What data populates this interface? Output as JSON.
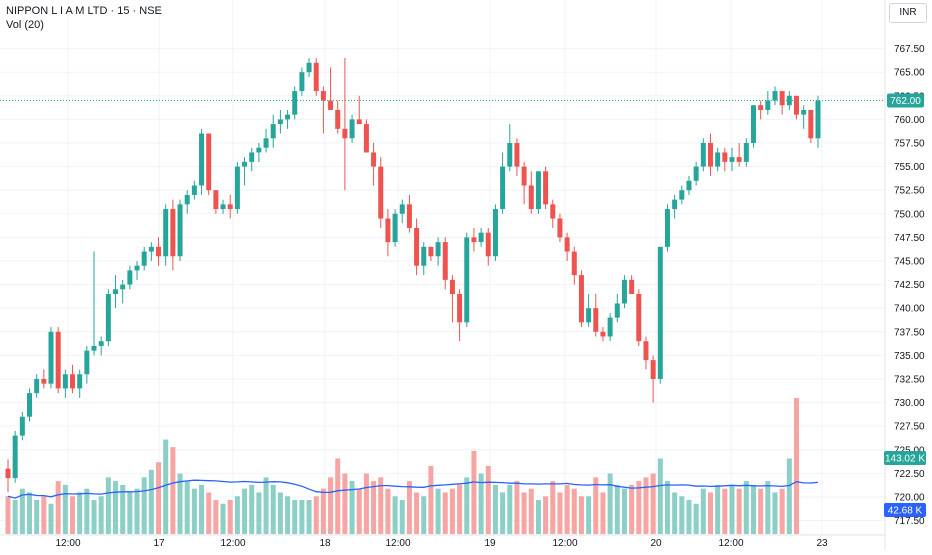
{
  "header": {
    "symbol_title": "NIPPON L I A M LTD · 15 · NSE",
    "volume_label": "Vol (20)",
    "currency": "INR"
  },
  "price_axis": {
    "ticks": [
      "767.50",
      "765.00",
      "762.50",
      "760.00",
      "757.50",
      "755.00",
      "752.50",
      "750.00",
      "747.50",
      "745.00",
      "742.50",
      "740.00",
      "737.50",
      "735.00",
      "732.50",
      "730.00",
      "727.50",
      "725.00",
      "722.50",
      "720.00",
      "717.50"
    ]
  },
  "time_axis": {
    "ticks": [
      "12:00",
      "17",
      "12:00",
      "18",
      "12:00",
      "19",
      "12:00",
      "20",
      "12:00",
      "23"
    ]
  },
  "last_price": {
    "label": "762.00",
    "value": 762.0,
    "color": "#26a69a"
  },
  "volume_badge": {
    "label": "143.02 K",
    "color": "#26a69a"
  },
  "vol_ma_badge": {
    "label": "42.68 K",
    "color": "#2962ff"
  },
  "colors": {
    "up": "#26a69a",
    "down": "#ef5350",
    "up_vol": "#8ccfc6",
    "down_vol": "#f6a5a3",
    "ma": "#2962ff",
    "grid": "#f0f3fa"
  },
  "chart_data": {
    "type": "candlestick",
    "title": "NIPPON L I A M LTD · 15 · NSE",
    "y_range": [
      716.5,
      770
    ],
    "series": [
      {
        "name": "price",
        "ohlc": [
          [
            723,
            724,
            720.5,
            722
          ],
          [
            722,
            727,
            721.5,
            726.5
          ],
          [
            726.5,
            729,
            726,
            728.5
          ],
          [
            728.5,
            731.5,
            728,
            731
          ],
          [
            731,
            733,
            730.5,
            732.5
          ],
          [
            732.5,
            733.5,
            731.5,
            732
          ],
          [
            732,
            738,
            731.5,
            737.5
          ],
          [
            737.5,
            738,
            731,
            731.5
          ],
          [
            731.5,
            733.5,
            730.5,
            733
          ],
          [
            733,
            734,
            731,
            731.5
          ],
          [
            731.5,
            733.5,
            730.5,
            733
          ],
          [
            733,
            736,
            732,
            735.5
          ],
          [
            735.5,
            746,
            735,
            736
          ],
          [
            736,
            737,
            735,
            736.5
          ],
          [
            736.5,
            742,
            736,
            741.5
          ],
          [
            741.5,
            743.5,
            740,
            742
          ],
          [
            742,
            743,
            740.5,
            742.5
          ],
          [
            742.5,
            744.5,
            742,
            744
          ],
          [
            744,
            745,
            743,
            744.5
          ],
          [
            744.5,
            746.5,
            744,
            746
          ],
          [
            746,
            747,
            745,
            746.5
          ],
          [
            746.5,
            747.5,
            744.5,
            745.5
          ],
          [
            745.5,
            751,
            744.5,
            750.5
          ],
          [
            750.5,
            751.5,
            744,
            745.5
          ],
          [
            745.5,
            751.5,
            745,
            751
          ],
          [
            751,
            752.5,
            750,
            752
          ],
          [
            752,
            753.5,
            751.5,
            753
          ],
          [
            753,
            759,
            752,
            758.5
          ],
          [
            758.5,
            758.5,
            752,
            752.5
          ],
          [
            752.5,
            752.5,
            750,
            750.5
          ],
          [
            750.5,
            751.5,
            750,
            751
          ],
          [
            751,
            752,
            749.5,
            750.5
          ],
          [
            750.5,
            755.5,
            750,
            755
          ],
          [
            755,
            756,
            753,
            755.5
          ],
          [
            755.5,
            757,
            754.5,
            756.5
          ],
          [
            756.5,
            757.5,
            755.5,
            757
          ],
          [
            757,
            759,
            756.5,
            758
          ],
          [
            758,
            760.5,
            757,
            759.5
          ],
          [
            759.5,
            761,
            758.5,
            760
          ],
          [
            760,
            761,
            759,
            760.5
          ],
          [
            760.5,
            763.5,
            760,
            763
          ],
          [
            763,
            765.5,
            762.5,
            765
          ],
          [
            765,
            766.5,
            764.5,
            766
          ],
          [
            766,
            766.5,
            762.5,
            763
          ],
          [
            763,
            763.5,
            758.5,
            762
          ],
          [
            762,
            765.5,
            761.5,
            761
          ],
          [
            761,
            762,
            758.5,
            759
          ],
          [
            759,
            766.5,
            752.5,
            758
          ],
          [
            758,
            760.5,
            757.5,
            760
          ],
          [
            760,
            762.5,
            759.5,
            759.5
          ],
          [
            759.5,
            760,
            756.5,
            756.5
          ],
          [
            756.5,
            757.5,
            753,
            755
          ],
          [
            755,
            756,
            748.5,
            749.5
          ],
          [
            749.5,
            750.5,
            745.5,
            747
          ],
          [
            747,
            750.5,
            746.5,
            750
          ],
          [
            750,
            751.5,
            749,
            751
          ],
          [
            751,
            752,
            748,
            748.5
          ],
          [
            748.5,
            749.5,
            743.5,
            744.5
          ],
          [
            744.5,
            747,
            743.5,
            746.5
          ],
          [
            746.5,
            746.5,
            745,
            745.5
          ],
          [
            745.5,
            747.5,
            744.5,
            747
          ],
          [
            747,
            747.5,
            742,
            743
          ],
          [
            743,
            743.5,
            738.5,
            741.5
          ],
          [
            741.5,
            742,
            736.5,
            738.5
          ],
          [
            738.5,
            748,
            738,
            747.5
          ],
          [
            747.5,
            748.5,
            746,
            747
          ],
          [
            747,
            748.5,
            746.5,
            748
          ],
          [
            748,
            748.5,
            744.5,
            745.5
          ],
          [
            745.5,
            751,
            745,
            750.5
          ],
          [
            750.5,
            756.5,
            750,
            755
          ],
          [
            755,
            759.5,
            754.5,
            757.5
          ],
          [
            757.5,
            758,
            754,
            755
          ],
          [
            755,
            755.5,
            751,
            753
          ],
          [
            753,
            754.5,
            750,
            750.5
          ],
          [
            750.5,
            754.5,
            750,
            754.5
          ],
          [
            754.5,
            755,
            750.5,
            751
          ],
          [
            751,
            751.5,
            748.5,
            749.5
          ],
          [
            749.5,
            750,
            747,
            747.5
          ],
          [
            747.5,
            748,
            745,
            746
          ],
          [
            746,
            746.5,
            742.5,
            743.5
          ],
          [
            743.5,
            744,
            738,
            738.5
          ],
          [
            738.5,
            741.5,
            738,
            740
          ],
          [
            740,
            741.5,
            737,
            737.5
          ],
          [
            737.5,
            738,
            736.5,
            737
          ],
          [
            737,
            739.5,
            736.5,
            739
          ],
          [
            739,
            741.5,
            738.5,
            740.5
          ],
          [
            740.5,
            743.5,
            740,
            743
          ],
          [
            743,
            743.5,
            741.5,
            741.5
          ],
          [
            741.5,
            742,
            736,
            736.5
          ],
          [
            736.5,
            737,
            733.5,
            734.5
          ],
          [
            734.5,
            735,
            730,
            732.5
          ],
          [
            732.5,
            746.5,
            732,
            746.5
          ],
          [
            746.5,
            751,
            746,
            750.5
          ],
          [
            750.5,
            752,
            749.5,
            751.5
          ],
          [
            751.5,
            753,
            751,
            752.5
          ],
          [
            752.5,
            754,
            752,
            753.5
          ],
          [
            753.5,
            755.5,
            753,
            755
          ],
          [
            755,
            758,
            754.5,
            757.5
          ],
          [
            757.5,
            758.5,
            754,
            755
          ],
          [
            755,
            757,
            754.5,
            756.5
          ],
          [
            756.5,
            757,
            754.5,
            755.5
          ],
          [
            755.5,
            757,
            754.5,
            756
          ],
          [
            756,
            757.5,
            755,
            755.5
          ],
          [
            755.5,
            758,
            755,
            757.5
          ],
          [
            757.5,
            761.5,
            757,
            761.5
          ],
          [
            761.5,
            762,
            760,
            761
          ],
          [
            761,
            763,
            760.5,
            762
          ],
          [
            762,
            763.5,
            761.5,
            763
          ],
          [
            763,
            763,
            760.5,
            761.5
          ],
          [
            761.5,
            763,
            761,
            762.5
          ],
          [
            762.5,
            762.5,
            760,
            760.5
          ],
          [
            760.5,
            761.5,
            759,
            761
          ],
          [
            761,
            761,
            757.5,
            758
          ],
          [
            758,
            762.5,
            757,
            762
          ]
        ]
      },
      {
        "name": "volume",
        "values": [
          10,
          9,
          12,
          11,
          9,
          10,
          8,
          14,
          13,
          10,
          11,
          12,
          9,
          10,
          15,
          14,
          13,
          11,
          12,
          15,
          17,
          19,
          25,
          23,
          16,
          14,
          12,
          13,
          11,
          9,
          8,
          9,
          10,
          12,
          13,
          11,
          15,
          13,
          11,
          10,
          9,
          9,
          9,
          10,
          12,
          15,
          20,
          16,
          14,
          12,
          16,
          14,
          15,
          12,
          10,
          9,
          14,
          11,
          10,
          18,
          12,
          11,
          12,
          13,
          15,
          22,
          16,
          18,
          13,
          11,
          13,
          14,
          11,
          12,
          9,
          10,
          14,
          11,
          13,
          12,
          10,
          10,
          15,
          11,
          16,
          13,
          12,
          13,
          14,
          15,
          16,
          20,
          14,
          11,
          10,
          9,
          8,
          12,
          11,
          13,
          12,
          13,
          12,
          14,
          13,
          12,
          14,
          11,
          12,
          20,
          36
        ]
      },
      {
        "name": "volume_ma",
        "values": []
      }
    ]
  }
}
